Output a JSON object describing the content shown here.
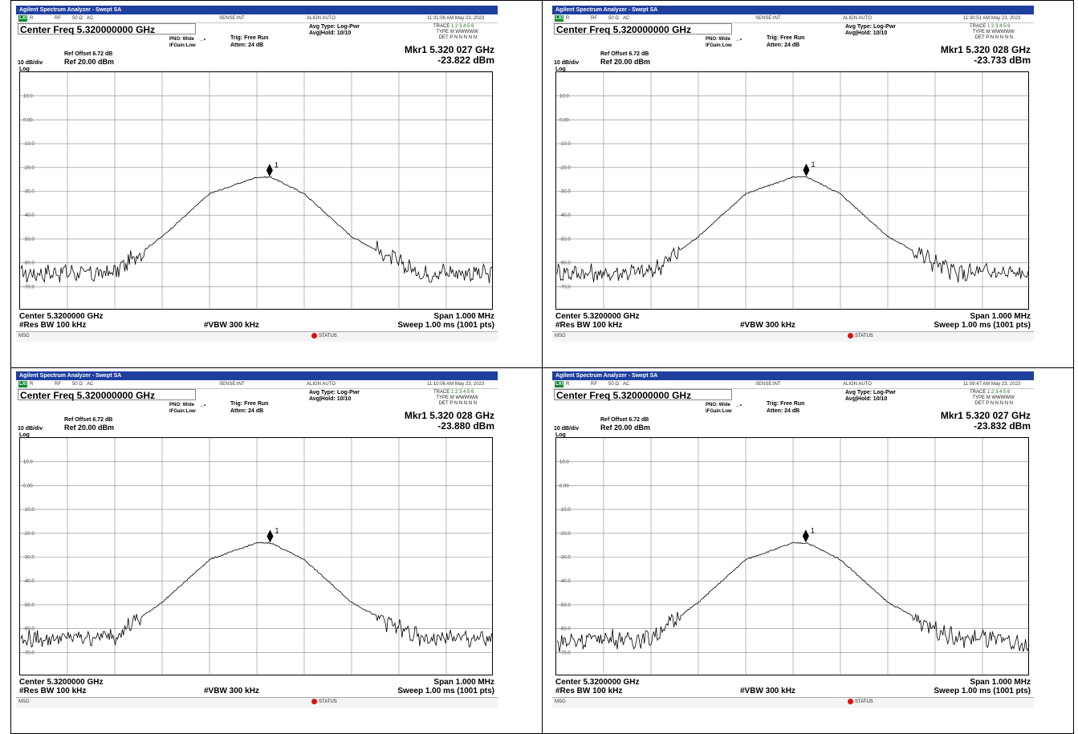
{
  "panels": [
    {
      "title": "Agilent Spectrum Analyzer - Swept SA",
      "status": {
        "lxi": "LXI",
        "r": "R",
        "rf": "RF",
        "ohm": "50 Ω",
        "ac": "AC",
        "sense": "SENSE:INT",
        "align": "ALIGN AUTO",
        "time": "11:31:06 AM May 23, 2023"
      },
      "center_freq_label": "Center Freq 5.320000000 GHz",
      "pno": "PNO: Wide",
      "ifgain": "IFGain:Low",
      "trig": "Trig: Free Run",
      "atten": "Atten: 24 dB",
      "avg_type": "Avg Type: Log-Pwr",
      "avg_hold": "Avg|Hold: 10/10",
      "trace_labels": {
        "trace": "TRACE",
        "type": "TYPE",
        "det": "DET",
        "trace_val": "1 2 3 4 5 6",
        "type_val": "M WWWWW",
        "det_val": "P N N N N N"
      },
      "mkr_freq": "Mkr1 5.320 027 GHz",
      "mkr_level": "-23.822 dBm",
      "ref_offset": "Ref Offset 6.72 dB",
      "scale": "10 dB/div",
      "ref": "Ref 20.00 dBm",
      "log": "Log",
      "center": "Center 5.3200000 GHz",
      "span": "Span 1.000 MHz",
      "rbw": "#Res BW 100 kHz",
      "vbw": "#VBW 300 kHz",
      "sweep": "Sweep  1.00 ms (1001 pts)",
      "msg": "MSG",
      "status_btn": "STATUS"
    },
    {
      "title": "Agilent Spectrum Analyzer - Swept SA",
      "status": {
        "lxi": "LXI",
        "r": "R",
        "rf": "RF",
        "ohm": "50 Ω",
        "ac": "AC",
        "sense": "SENSE:INT",
        "align": "ALIGN AUTO",
        "time": "11:30:51 AM May 23, 2023"
      },
      "center_freq_label": "Center Freq 5.320000000 GHz",
      "pno": "PNO: Wide",
      "ifgain": "IFGain:Low",
      "trig": "Trig: Free Run",
      "atten": "Atten: 24 dB",
      "avg_type": "Avg Type: Log-Pwr",
      "avg_hold": "Avg|Hold: 10/10",
      "trace_labels": {
        "trace": "TRACE",
        "type": "TYPE",
        "det": "DET",
        "trace_val": "1 2 3 4 5 6",
        "type_val": "M WWWWW",
        "det_val": "P N N N N N"
      },
      "mkr_freq": "Mkr1 5.320 028 GHz",
      "mkr_level": "-23.733 dBm",
      "ref_offset": "Ref Offset 6.72 dB",
      "scale": "10 dB/div",
      "ref": "Ref 20.00 dBm",
      "log": "Log",
      "center": "Center 5.3200000 GHz",
      "span": "Span 1.000 MHz",
      "rbw": "#Res BW 100 kHz",
      "vbw": "#VBW 300 kHz",
      "sweep": "Sweep  1.00 ms (1001 pts)",
      "msg": "MSG",
      "status_btn": "STATUS"
    },
    {
      "title": "Agilent Spectrum Analyzer - Swept SA",
      "status": {
        "lxi": "LXI",
        "r": "R",
        "rf": "RF",
        "ohm": "50 Ω",
        "ac": "AC",
        "sense": "SENSE:INT",
        "align": "ALIGN AUTO",
        "time": "11:10:06 AM May 23, 2023"
      },
      "center_freq_label": "Center Freq 5.320000000 GHz",
      "pno": "PNO: Wide",
      "ifgain": "IFGain:Low",
      "trig": "Trig: Free Run",
      "atten": "Atten: 24 dB",
      "avg_type": "Avg Type: Log-Pwr",
      "avg_hold": "Avg|Hold: 10/10",
      "trace_labels": {
        "trace": "TRACE",
        "type": "TYPE",
        "det": "DET",
        "trace_val": "1 2 3 4 5 6",
        "type_val": "M WWWWW",
        "det_val": "P N N N N N"
      },
      "mkr_freq": "Mkr1 5.320 028 GHz",
      "mkr_level": "-23.880 dBm",
      "ref_offset": "Ref Offset 6.72 dB",
      "scale": "10 dB/div",
      "ref": "Ref 20.00 dBm",
      "log": "Log",
      "center": "Center 5.3200000 GHz",
      "span": "Span 1.000 MHz",
      "rbw": "#Res BW 100 kHz",
      "vbw": "#VBW 300 kHz",
      "sweep": "Sweep  1.00 ms (1001 pts)",
      "msg": "MSG",
      "status_btn": "STATUS"
    },
    {
      "title": "Agilent Spectrum Analyzer - Swept SA",
      "status": {
        "lxi": "LXI",
        "r": "R",
        "rf": "RF",
        "ohm": "50 Ω",
        "ac": "AC",
        "sense": "SENSE:INT",
        "align": "ALIGN AUTO",
        "time": "11:09:47 AM May 23, 2023"
      },
      "center_freq_label": "Center Freq 5.320000000 GHz",
      "pno": "PNO: Wide",
      "ifgain": "IFGain:Low",
      "trig": "Trig: Free Run",
      "atten": "Atten: 24 dB",
      "avg_type": "Avg Type: Log-Pwr",
      "avg_hold": "Avg|Hold: 10/10",
      "trace_labels": {
        "trace": "TRACE",
        "type": "TYPE",
        "det": "DET",
        "trace_val": "1 2 3 4 5 6",
        "type_val": "M WWWWW",
        "det_val": "P N N N N N"
      },
      "mkr_freq": "Mkr1 5.320 027 GHz",
      "mkr_level": "-23.832 dBm",
      "ref_offset": "Ref Offset 6.72 dB",
      "scale": "10 dB/div",
      "ref": "Ref 20.00 dBm",
      "log": "Log",
      "center": "Center 5.3200000 GHz",
      "span": "Span 1.000 MHz",
      "rbw": "#Res BW 100 kHz",
      "vbw": "#VBW 300 kHz",
      "sweep": "Sweep  1.00 ms (1001 pts)",
      "msg": "MSG",
      "status_btn": "STATUS"
    }
  ],
  "chart_data": [
    {
      "type": "line",
      "x_unit": "GHz",
      "xlim": [
        5.3195,
        5.3205
      ],
      "ylim": [
        -80,
        20
      ],
      "y_ticks": [
        "10.0",
        "0.00",
        "-10.0",
        "-20.0",
        "-30.0",
        "-40.0",
        "-50.0",
        "-60.0",
        "-70.0"
      ],
      "grid": true,
      "series": [
        {
          "x": [
            5.3195,
            5.3196,
            5.31965,
            5.3197,
            5.3198,
            5.3199,
            5.32,
            5.32003,
            5.3201,
            5.3202,
            5.3203,
            5.32035,
            5.3204,
            5.3205
          ],
          "values": [
            -65,
            -64,
            -65,
            -64,
            -49,
            -31,
            -24,
            -24,
            -31,
            -49,
            -60,
            -65,
            -64,
            -65
          ]
        }
      ],
      "markers": [
        {
          "label": "1",
          "x": 5.320027,
          "y": -23.822
        }
      ]
    },
    {
      "type": "line",
      "x_unit": "GHz",
      "xlim": [
        5.3195,
        5.3205
      ],
      "ylim": [
        -80,
        20
      ],
      "y_ticks": [
        "10.0",
        "0.00",
        "-10.0",
        "-20.0",
        "-30.0",
        "-40.0",
        "-50.0",
        "-60.0",
        "-70.0"
      ],
      "grid": true,
      "series": [
        {
          "x": [
            5.3195,
            5.3196,
            5.31965,
            5.3197,
            5.3198,
            5.3199,
            5.32,
            5.32003,
            5.3201,
            5.3202,
            5.3203,
            5.32035,
            5.3204,
            5.3205
          ],
          "values": [
            -64,
            -65,
            -64,
            -64,
            -49,
            -31,
            -24,
            -24,
            -31,
            -49,
            -60,
            -65,
            -64,
            -65
          ]
        }
      ],
      "markers": [
        {
          "label": "1",
          "x": 5.320028,
          "y": -23.733
        }
      ]
    },
    {
      "type": "line",
      "x_unit": "GHz",
      "xlim": [
        5.3195,
        5.3205
      ],
      "ylim": [
        -80,
        20
      ],
      "y_ticks": [
        "10.0",
        "0.00",
        "-10.0",
        "-20.0",
        "-30.0",
        "-40.0",
        "-50.0",
        "-60.0",
        "-70.0"
      ],
      "grid": true,
      "series": [
        {
          "x": [
            5.3195,
            5.3196,
            5.31965,
            5.3197,
            5.3198,
            5.3199,
            5.32,
            5.32003,
            5.3201,
            5.3202,
            5.3203,
            5.32035,
            5.3204,
            5.3205
          ],
          "values": [
            -65,
            -64,
            -64,
            -63,
            -49,
            -31,
            -24,
            -24,
            -31,
            -49,
            -60,
            -65,
            -64,
            -65
          ]
        }
      ],
      "markers": [
        {
          "label": "1",
          "x": 5.320028,
          "y": -23.88
        }
      ]
    },
    {
      "type": "line",
      "x_unit": "GHz",
      "xlim": [
        5.3195,
        5.3205
      ],
      "ylim": [
        -80,
        20
      ],
      "y_ticks": [
        "10.0",
        "0.00",
        "-10.0",
        "-20.0",
        "-30.0",
        "-40.0",
        "-50.0",
        "-60.0",
        "-70.0"
      ],
      "grid": true,
      "series": [
        {
          "x": [
            5.3195,
            5.3196,
            5.31965,
            5.3197,
            5.3198,
            5.3199,
            5.32,
            5.32003,
            5.3201,
            5.3202,
            5.3203,
            5.32035,
            5.3204,
            5.3205
          ],
          "values": [
            -66,
            -64,
            -65,
            -64,
            -49,
            -31,
            -24,
            -24,
            -31,
            -49,
            -60,
            -65,
            -64,
            -68
          ]
        }
      ],
      "markers": [
        {
          "label": "1",
          "x": 5.320027,
          "y": -23.832
        }
      ]
    }
  ]
}
